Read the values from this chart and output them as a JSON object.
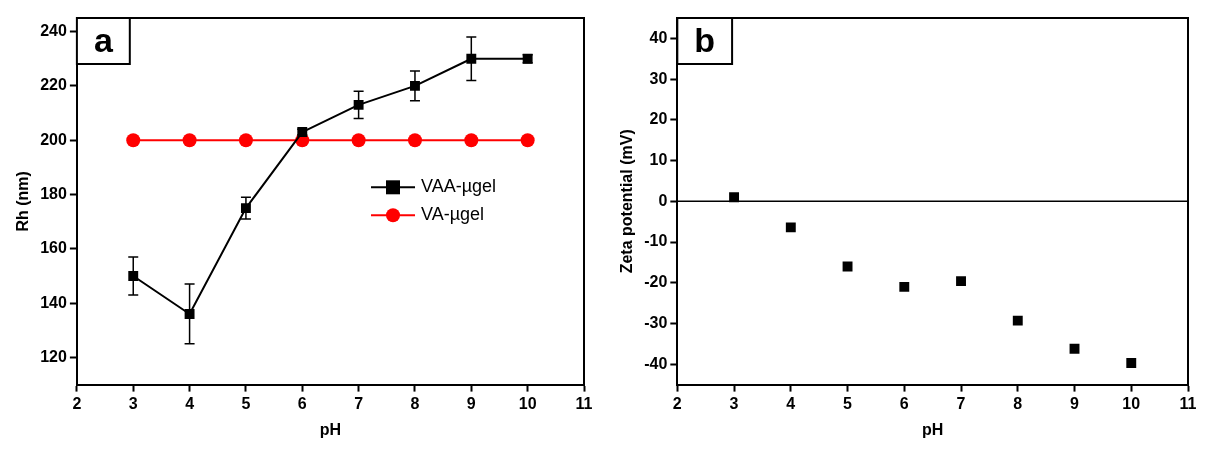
{
  "chart_data": [
    {
      "type": "line",
      "xlabel": "pH",
      "ylabel": "Rh (nm)",
      "annotations": [
        "a"
      ],
      "x": [
        3,
        4,
        5,
        6,
        7,
        8,
        9,
        10
      ],
      "xlim": [
        2,
        11
      ],
      "xticks": [
        2,
        3,
        4,
        5,
        6,
        7,
        8,
        9,
        10,
        11
      ],
      "ylim": [
        110,
        245
      ],
      "yticks": [
        120,
        140,
        160,
        180,
        200,
        220,
        240
      ],
      "legend": "right",
      "series": [
        {
          "name": "VAA-µgel",
          "color": "#000000",
          "marker": "square",
          "values": [
            150,
            136,
            175,
            203,
            213,
            220,
            230,
            230
          ],
          "errors": [
            7,
            11,
            4,
            1,
            5,
            5.5,
            8,
            1.5
          ]
        },
        {
          "name": "VA-µgel",
          "color": "#ff0000",
          "marker": "circle",
          "values": [
            200,
            200,
            200,
            200,
            200,
            200,
            200,
            200
          ]
        }
      ]
    },
    {
      "type": "scatter",
      "xlabel": "pH",
      "ylabel": "Zeta potential (mV)",
      "annotations": [
        "b"
      ],
      "x": [
        3,
        4,
        5,
        6,
        7,
        8,
        9,
        10
      ],
      "xlim": [
        2,
        11
      ],
      "xticks": [
        2,
        3,
        4,
        5,
        6,
        7,
        8,
        9,
        10,
        11
      ],
      "ylim": [
        -45,
        45
      ],
      "yticks": [
        -40,
        -30,
        -20,
        -10,
        0,
        10,
        20,
        30,
        40
      ],
      "marker": "square",
      "ref_lines": [
        {
          "axis": "y",
          "value": 0,
          "color": "#000000"
        }
      ],
      "series": [
        {
          "color": "#000000",
          "values": [
            1,
            -6.4,
            -16,
            -21,
            -19.6,
            -29.3,
            -36.2,
            -39.7
          ]
        }
      ]
    }
  ]
}
